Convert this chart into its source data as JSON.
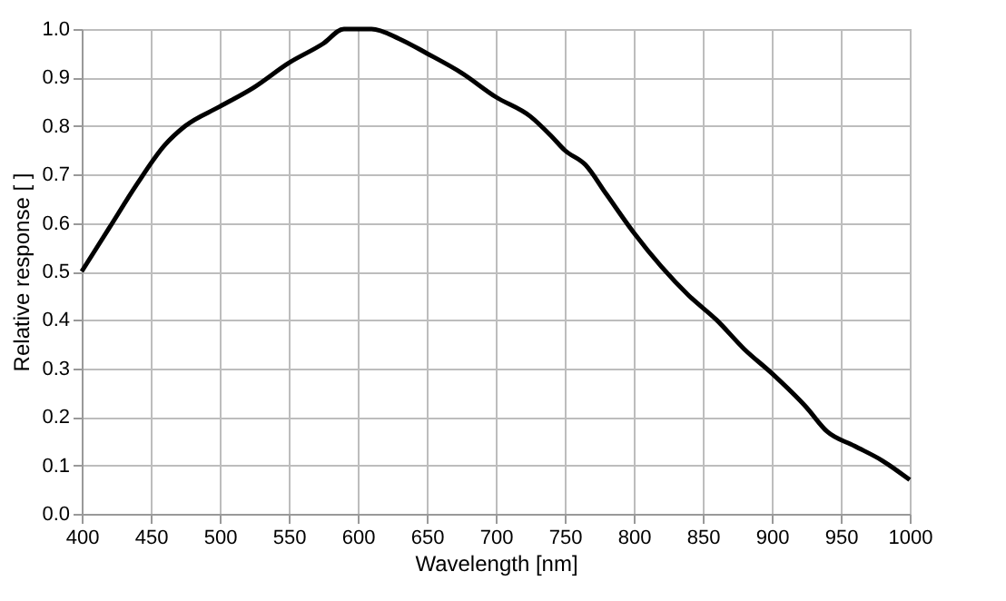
{
  "chart_data": {
    "type": "line",
    "xlabel": "Wavelength [nm]",
    "ylabel": "Relative response [ ]",
    "x": [
      400,
      420,
      440,
      460,
      475,
      500,
      525,
      550,
      575,
      590,
      610,
      630,
      650,
      675,
      700,
      725,
      740,
      750,
      765,
      780,
      800,
      820,
      840,
      860,
      880,
      900,
      925,
      940,
      960,
      980,
      1000
    ],
    "series": [
      {
        "color": "#000000",
        "values": [
          0.5,
          0.59,
          0.68,
          0.76,
          0.8,
          0.84,
          0.88,
          0.93,
          0.97,
          1.0,
          1.0,
          0.98,
          0.95,
          0.91,
          0.86,
          0.82,
          0.78,
          0.75,
          0.72,
          0.66,
          0.58,
          0.51,
          0.45,
          0.4,
          0.34,
          0.29,
          0.22,
          0.17,
          0.14,
          0.11,
          0.07
        ]
      }
    ],
    "xlim": [
      400,
      1000
    ],
    "xticks": [
      400,
      450,
      500,
      550,
      600,
      650,
      700,
      750,
      800,
      850,
      900,
      950,
      1000
    ],
    "ylim": [
      0,
      1
    ],
    "yticks": [
      {
        "value": 0,
        "label": "0.0"
      },
      {
        "value": 0.1,
        "label": "0.1"
      },
      {
        "value": 0.2,
        "label": "0.2"
      },
      {
        "value": 0.3,
        "label": "0.3"
      },
      {
        "value": 0.4,
        "label": "0.4"
      },
      {
        "value": 0.5,
        "label": "0.5"
      },
      {
        "value": 0.6,
        "label": "0.6"
      },
      {
        "value": 0.7,
        "label": "0.7"
      },
      {
        "value": 0.8,
        "label": "0.8"
      },
      {
        "value": 0.9,
        "label": "0.9"
      },
      {
        "value": 1,
        "label": "1.0"
      }
    ],
    "grid": true,
    "line_style": "solid",
    "marker": "none"
  }
}
